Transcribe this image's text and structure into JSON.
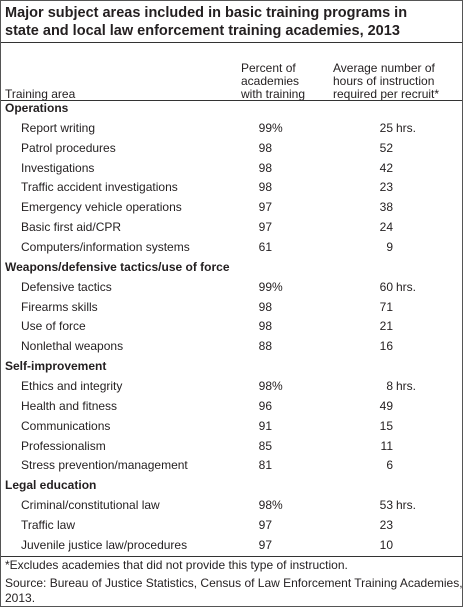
{
  "header": {
    "title": [
      "Major subject areas included in basic training programs in",
      "state and local law enforcement training academies, 2013"
    ]
  },
  "table": {
    "columns": [
      [
        "Training area"
      ],
      [
        "Percent of",
        "academies",
        "with training"
      ],
      [
        "Average number of",
        "hours of instruction",
        "required per recruit*"
      ]
    ],
    "sections": [
      {
        "name": "Operations",
        "rows": [
          {
            "area": "Report writing",
            "pct": "99",
            "pct_unit": "%",
            "hours": "25",
            "hours_unit": "hrs."
          },
          {
            "area": "Patrol procedures",
            "pct": "98",
            "hours": "52"
          },
          {
            "area": "Investigations",
            "pct": "98",
            "hours": "42"
          },
          {
            "area": "Traffic accident investigations",
            "pct": "98",
            "hours": "23"
          },
          {
            "area": "Emergency vehicle operations",
            "pct": "97",
            "hours": "38"
          },
          {
            "area": "Basic first aid/CPR",
            "pct": "97",
            "hours": "24"
          },
          {
            "area": "Computers/information systems",
            "pct": "61",
            "hours": "9"
          }
        ]
      },
      {
        "name": "Weapons/defensive tactics/use of force",
        "rows": [
          {
            "area": "Defensive tactics",
            "pct": "99",
            "pct_unit": "%",
            "hours": "60",
            "hours_unit": "hrs."
          },
          {
            "area": "Firearms skills",
            "pct": "98",
            "hours": "71"
          },
          {
            "area": "Use of force",
            "pct": "98",
            "hours": "21"
          },
          {
            "area": "Nonlethal weapons",
            "pct": "88",
            "hours": "16"
          }
        ]
      },
      {
        "name": "Self-improvement",
        "rows": [
          {
            "area": "Ethics and integrity",
            "pct": "98",
            "pct_unit": "%",
            "hours": "8",
            "hours_unit": "hrs."
          },
          {
            "area": "Health and fitness",
            "pct": "96",
            "hours": "49"
          },
          {
            "area": "Communications",
            "pct": "91",
            "hours": "15"
          },
          {
            "area": "Professionalism",
            "pct": "85",
            "hours": "11"
          },
          {
            "area": "Stress prevention/management",
            "pct": "81",
            "hours": "6"
          }
        ]
      },
      {
        "name": "Legal education",
        "rows": [
          {
            "area": "Criminal/constitutional law",
            "pct": "98",
            "pct_unit": "%",
            "hours": "53",
            "hours_unit": "hrs."
          },
          {
            "area": "Traffic law",
            "pct": "97",
            "hours": "23"
          },
          {
            "area": "Juvenile justice law/procedures",
            "pct": "97",
            "hours": "10"
          }
        ]
      }
    ]
  },
  "footer": {
    "note": "*Excludes academies that did not provide this type of instruction.",
    "source": [
      "Source: Bureau of Justice Statistics, Census of Law Enforcement Training Academies,",
      "2013."
    ]
  }
}
